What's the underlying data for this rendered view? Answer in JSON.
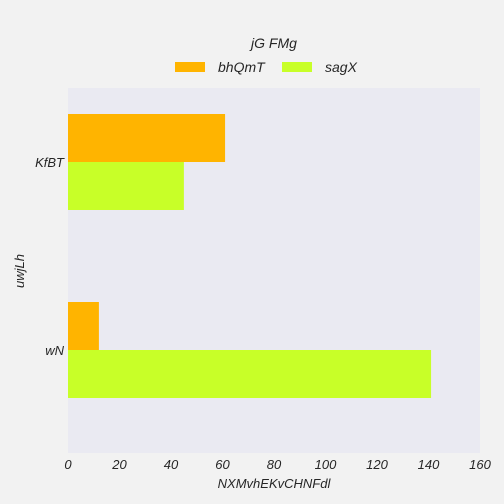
{
  "chart_data": {
    "type": "bar",
    "orientation": "horizontal",
    "categories": [
      "KfBT",
      "wN"
    ],
    "series": [
      {
        "name": "bhQmT",
        "values": [
          61,
          12
        ],
        "color": "#ffb400"
      },
      {
        "name": "sagX",
        "values": [
          45,
          141
        ],
        "color": "#c8ff28"
      }
    ],
    "title": "",
    "xlabel": "NXMvhEKvCHNFdl",
    "ylabel": "uwjLh",
    "xlim": [
      0,
      160
    ],
    "xticks": [
      "0",
      "20",
      "40",
      "60",
      "80",
      "100",
      "120",
      "140",
      "160"
    ],
    "legend": {
      "title": "jG FMg",
      "position": "top-center"
    },
    "grid": false,
    "plot_background": "#eaeaf2",
    "page_background": "#f2f2f2"
  }
}
